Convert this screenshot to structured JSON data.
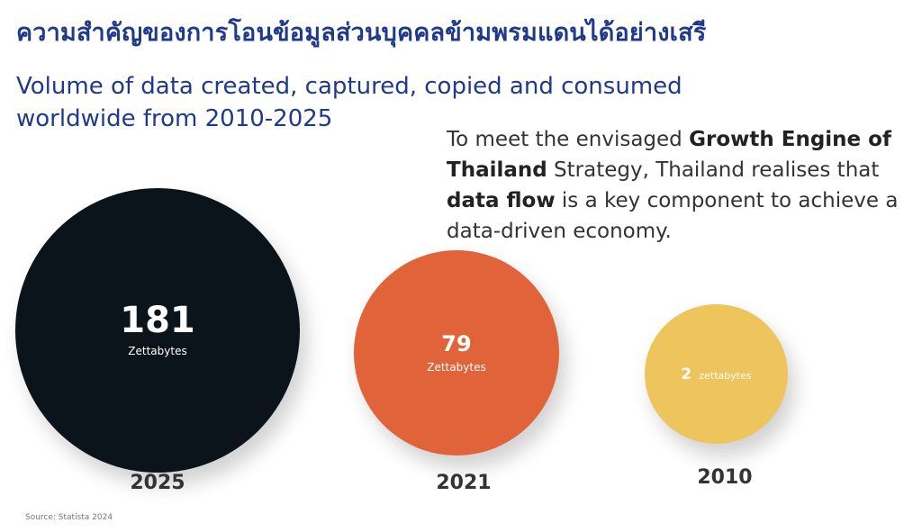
{
  "thai_title": "ความสำคัญของการโอนข้อมูลส่วนบุคคลข้ามพรมแดนได้อย่างเสรี",
  "description": {
    "p1": "To meet the envisaged ",
    "b1": "Growth Engine of Thailand",
    "p2": " Strategy, Thailand realises that ",
    "b2": "data flow",
    "p3": " is a key component to achieve a data-driven economy."
  },
  "source": "Source:  Statista 2024",
  "chart_data": {
    "type": "bubble",
    "title": "Volume of data created, captured, copied and consumed worldwide from 2010-2025",
    "points": [
      {
        "year": "2025",
        "value": 181,
        "value_label": "181",
        "unit": "Zettabytes",
        "color": "#0b141a"
      },
      {
        "year": "2021",
        "value": 79,
        "value_label": "79",
        "unit": "Zettabytes",
        "color": "#e0633a"
      },
      {
        "year": "2010",
        "value": 2,
        "value_label": "2",
        "unit": "zettabytes",
        "color": "#eec45c"
      }
    ]
  }
}
